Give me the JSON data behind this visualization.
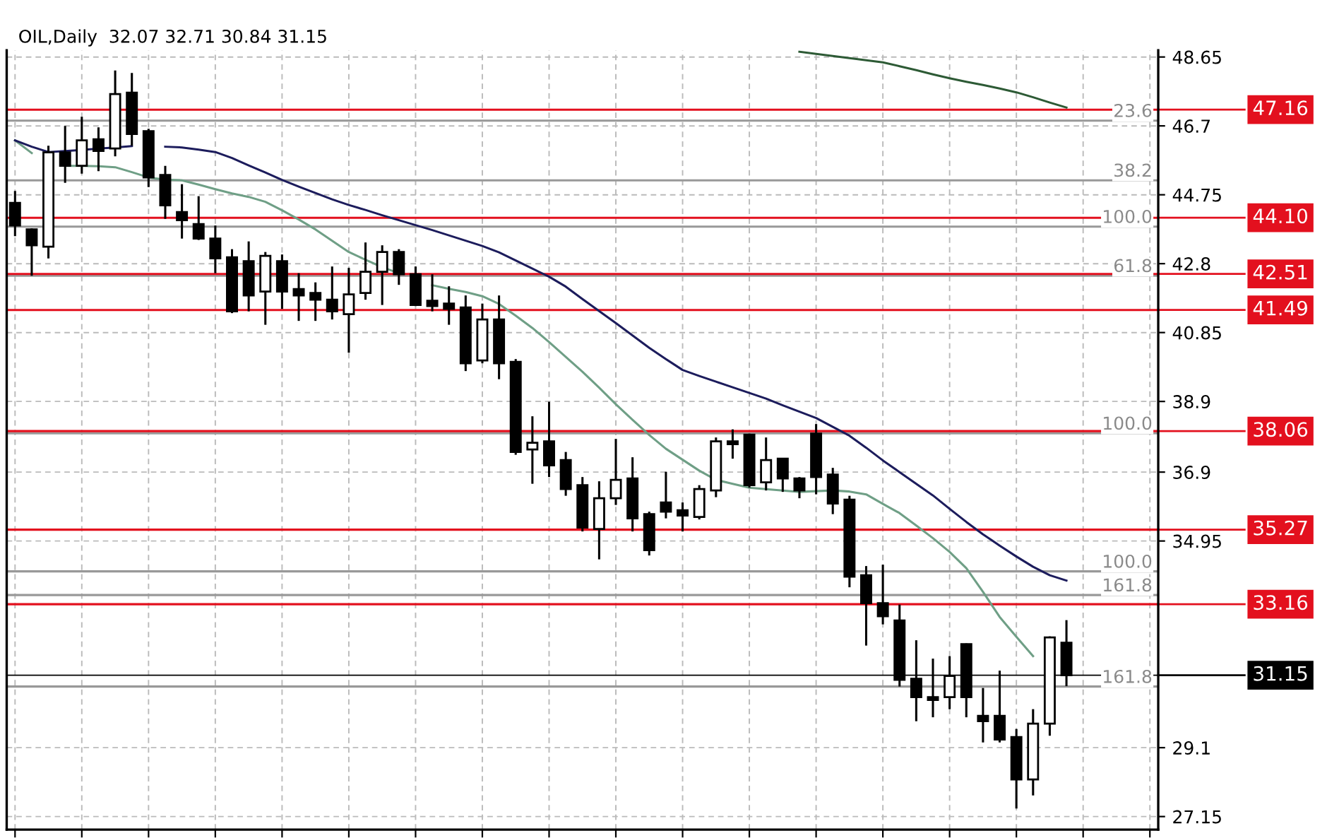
{
  "chart_data": {
    "type": "candlestick",
    "title": "OIL,Daily  32.07 32.71 30.84 31.15",
    "categories": [
      null,
      null,
      null,
      null,
      null,
      null,
      null,
      null,
      null,
      null,
      null,
      null,
      null,
      null,
      null,
      null,
      null,
      null,
      null,
      null,
      null,
      null,
      null,
      null,
      null,
      null,
      null,
      null,
      null,
      null,
      null,
      null,
      null,
      null,
      null,
      null,
      null,
      null,
      null,
      null,
      null,
      null,
      null,
      null,
      null,
      null,
      null,
      null,
      null,
      null,
      null,
      null,
      null,
      null,
      null,
      null,
      null,
      null,
      null,
      null,
      null,
      null,
      null,
      null,
      null,
      null,
      null,
      null,
      null
    ],
    "ohlc": [
      [
        44.52,
        44.86,
        43.58,
        43.88
      ],
      [
        43.77,
        43.8,
        42.46,
        43.32
      ],
      [
        43.28,
        46.14,
        42.95,
        45.95
      ],
      [
        45.95,
        46.7,
        45.09,
        45.57
      ],
      [
        45.57,
        46.96,
        45.35,
        46.29
      ],
      [
        46.32,
        46.66,
        45.42,
        45.99
      ],
      [
        46.06,
        48.27,
        45.84,
        47.6
      ],
      [
        47.64,
        48.2,
        46.14,
        46.47
      ],
      [
        46.55,
        46.62,
        44.97,
        45.24
      ],
      [
        45.31,
        45.57,
        44.07,
        44.45
      ],
      [
        44.26,
        45.05,
        43.51,
        44.03
      ],
      [
        43.92,
        44.71,
        43.47,
        43.51
      ],
      [
        43.51,
        43.88,
        42.53,
        42.95
      ],
      [
        42.98,
        43.21,
        41.4,
        41.45
      ],
      [
        42.87,
        43.43,
        41.45,
        41.9
      ],
      [
        42.01,
        43.13,
        41.07,
        43.02
      ],
      [
        42.87,
        43.06,
        41.52,
        42.01
      ],
      [
        42.08,
        42.53,
        41.18,
        41.9
      ],
      [
        41.97,
        42.27,
        41.18,
        41.78
      ],
      [
        41.78,
        42.72,
        41.22,
        41.45
      ],
      [
        41.37,
        42.68,
        40.28,
        41.93
      ],
      [
        41.97,
        43.4,
        41.78,
        42.57
      ],
      [
        42.57,
        43.32,
        41.63,
        43.13
      ],
      [
        43.13,
        43.21,
        42.2,
        42.5
      ],
      [
        42.5,
        42.72,
        41.6,
        41.63
      ],
      [
        41.75,
        42.5,
        41.45,
        41.6
      ],
      [
        41.67,
        42.16,
        41.07,
        41.52
      ],
      [
        41.56,
        41.9,
        39.76,
        39.98
      ],
      [
        40.06,
        41.67,
        39.98,
        41.22
      ],
      [
        41.22,
        41.9,
        39.53,
        39.98
      ],
      [
        40.02,
        40.1,
        37.39,
        37.47
      ],
      [
        37.54,
        38.48,
        36.57,
        37.73
      ],
      [
        37.77,
        38.89,
        36.76,
        37.09
      ],
      [
        37.24,
        37.47,
        36.23,
        36.42
      ],
      [
        36.53,
        36.76,
        35.22,
        35.33
      ],
      [
        35.29,
        36.64,
        34.43,
        36.16
      ],
      [
        36.16,
        37.84,
        35.97,
        36.68
      ],
      [
        36.72,
        37.32,
        35.22,
        35.59
      ],
      [
        35.71,
        35.78,
        34.54,
        34.69
      ],
      [
        36.04,
        36.91,
        35.59,
        35.78
      ],
      [
        35.82,
        36.04,
        35.22,
        35.67
      ],
      [
        35.63,
        36.53,
        35.56,
        36.42
      ],
      [
        36.38,
        37.88,
        36.19,
        37.77
      ],
      [
        37.77,
        38.11,
        37.28,
        37.69
      ],
      [
        37.96,
        37.99,
        36.46,
        36.53
      ],
      [
        36.61,
        37.88,
        36.38,
        37.24
      ],
      [
        37.28,
        37.3,
        36.34,
        36.72
      ],
      [
        36.72,
        36.76,
        36.16,
        36.38
      ],
      [
        37.99,
        38.26,
        36.27,
        36.76
      ],
      [
        36.83,
        37.02,
        35.71,
        36.01
      ],
      [
        36.12,
        36.23,
        33.64,
        33.94
      ],
      [
        33.98,
        34.24,
        31.99,
        33.19
      ],
      [
        33.19,
        34.28,
        32.59,
        32.82
      ],
      [
        32.7,
        33.15,
        30.83,
        31.02
      ],
      [
        31.05,
        32.14,
        29.85,
        30.53
      ],
      [
        30.53,
        31.62,
        29.96,
        30.45
      ],
      [
        30.53,
        31.69,
        30.19,
        31.13
      ],
      [
        32.03,
        32.05,
        29.96,
        30.53
      ],
      [
        30.0,
        30.79,
        29.25,
        29.85
      ],
      [
        30.0,
        31.28,
        29.25,
        29.33
      ],
      [
        29.4,
        29.63,
        27.38,
        28.2
      ],
      [
        28.2,
        30.19,
        27.75,
        29.78
      ],
      [
        29.78,
        32.25,
        29.44,
        32.22
      ],
      [
        32.07,
        32.71,
        30.84,
        31.15
      ],
      null,
      null,
      null,
      null,
      null
    ],
    "series": [
      {
        "type": "line",
        "color": "#6f9f86",
        "values": [
          46.29,
          45.93,
          null,
          45.57,
          45.57,
          45.56,
          45.53,
          45.39,
          45.24,
          45.18,
          45.16,
          45.04,
          44.91,
          44.79,
          44.69,
          44.55,
          44.31,
          44.05,
          43.77,
          43.45,
          43.13,
          42.91,
          42.7,
          42.53,
          null,
          42.19,
          42.09,
          42.0,
          41.88,
          41.66,
          41.33,
          40.98,
          40.58,
          40.16,
          39.74,
          39.29,
          38.82,
          38.38,
          37.95,
          37.56,
          37.25,
          36.94,
          36.68,
          36.57,
          36.46,
          36.42,
          36.38,
          36.34,
          36.36,
          36.38,
          36.35,
          36.27,
          36.0,
          35.74,
          35.39,
          35.03,
          34.64,
          34.18,
          33.51,
          32.8,
          32.24,
          31.69,
          null,
          null,
          null,
          null,
          null,
          null,
          null
        ]
      },
      {
        "type": "line",
        "color": "#1c1c5c",
        "values": [
          46.29,
          46.11,
          45.96,
          45.99,
          46.02,
          46.06,
          46.09,
          46.13,
          null,
          46.11,
          46.09,
          46.03,
          45.96,
          45.79,
          45.58,
          45.38,
          45.17,
          44.98,
          44.8,
          44.62,
          44.46,
          44.32,
          44.17,
          44.03,
          43.89,
          43.75,
          43.6,
          43.45,
          43.3,
          43.12,
          42.89,
          42.66,
          42.43,
          42.15,
          41.8,
          41.46,
          41.12,
          40.77,
          40.42,
          40.1,
          39.79,
          39.62,
          39.46,
          39.3,
          39.14,
          38.98,
          38.79,
          38.61,
          38.43,
          38.18,
          37.93,
          37.59,
          37.23,
          36.9,
          36.57,
          36.24,
          35.86,
          35.49,
          35.14,
          34.82,
          34.51,
          34.22,
          33.98,
          33.83,
          null,
          null,
          null,
          null,
          null
        ]
      },
      {
        "type": "line",
        "color": "#2d5a35",
        "values": [
          null,
          null,
          null,
          null,
          null,
          null,
          null,
          null,
          null,
          null,
          null,
          null,
          null,
          null,
          null,
          null,
          null,
          null,
          null,
          null,
          null,
          null,
          null,
          null,
          null,
          null,
          null,
          null,
          null,
          null,
          null,
          null,
          null,
          null,
          null,
          null,
          null,
          null,
          null,
          null,
          null,
          null,
          null,
          null,
          null,
          null,
          null,
          48.8,
          48.74,
          48.68,
          48.62,
          48.56,
          48.5,
          48.39,
          48.28,
          48.16,
          48.05,
          47.95,
          47.86,
          47.76,
          47.65,
          47.51,
          47.36,
          47.22,
          null,
          null,
          null,
          null,
          null
        ]
      }
    ],
    "ylim": [
      26.78,
      48.84
    ],
    "yticks": [
      48.65,
      46.7,
      44.75,
      42.8,
      40.85,
      38.9,
      36.9,
      34.95,
      29.1,
      27.15
    ],
    "tick_labels": "y",
    "grid": true,
    "ref_lines": [
      {
        "axis": "y",
        "value": 46.85,
        "color": "#999999"
      },
      {
        "axis": "y",
        "value": 45.16,
        "color": "#999999"
      },
      {
        "axis": "y",
        "value": 43.85,
        "color": "#999999"
      },
      {
        "axis": "y",
        "value": 42.46,
        "color": "#999999"
      },
      {
        "axis": "y",
        "value": 38.0,
        "color": "#999999"
      },
      {
        "axis": "y",
        "value": 34.09,
        "color": "#999999"
      },
      {
        "axis": "y",
        "value": 33.42,
        "color": "#999999"
      },
      {
        "axis": "y",
        "value": 30.83,
        "color": "#999999"
      },
      {
        "axis": "y",
        "value": 47.16,
        "label": "47.16",
        "color": "#e3101e"
      },
      {
        "axis": "y",
        "value": 44.1,
        "label": "44.10",
        "color": "#e3101e"
      },
      {
        "axis": "y",
        "value": 42.51,
        "label": "42.51",
        "color": "#e3101e"
      },
      {
        "axis": "y",
        "value": 41.49,
        "label": "41.49",
        "color": "#e3101e"
      },
      {
        "axis": "y",
        "value": 38.06,
        "label": "38.06",
        "color": "#e3101e"
      },
      {
        "axis": "y",
        "value": 35.27,
        "label": "35.27",
        "color": "#e3101e"
      },
      {
        "axis": "y",
        "value": 33.16,
        "label": "33.16",
        "color": "#e3101e"
      },
      {
        "axis": "y",
        "value": 31.15,
        "label": "31.15",
        "color": "#000000"
      }
    ],
    "annotations": [
      {
        "text": "23.6",
        "y": 46.85
      },
      {
        "text": "38.2",
        "y": 45.16
      },
      {
        "text": "100.0",
        "y": 43.85
      },
      {
        "text": "61.8",
        "y": 42.46
      },
      {
        "text": "100.0",
        "y": 38.0
      },
      {
        "text": "100.0",
        "y": 34.09
      },
      {
        "text": "161.8",
        "y": 33.42
      },
      {
        "text": "161.8",
        "y": 30.83
      }
    ]
  }
}
